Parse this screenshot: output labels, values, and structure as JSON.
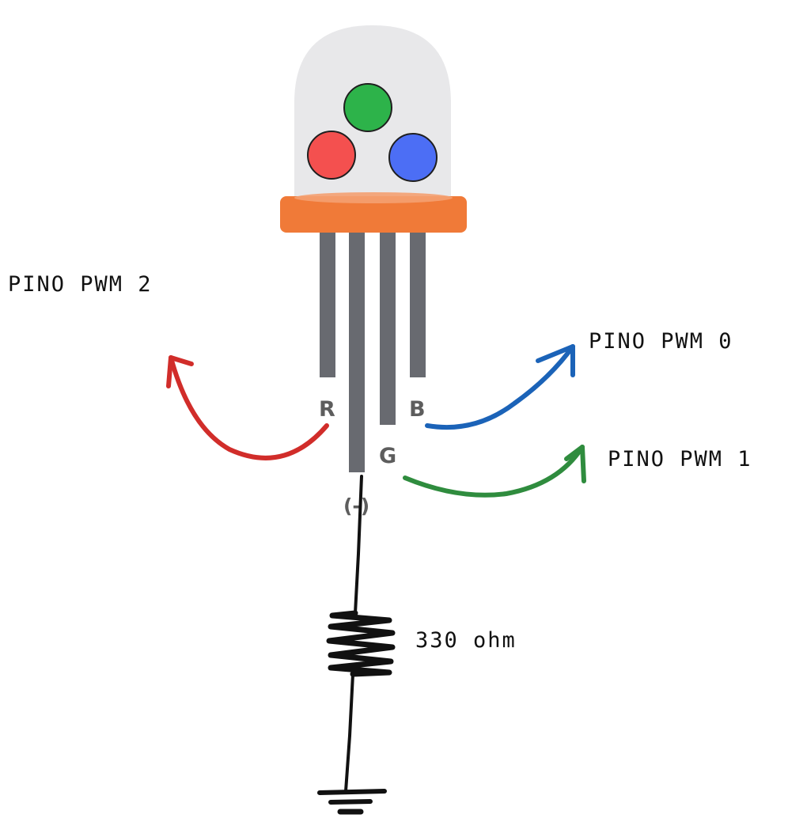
{
  "led": {
    "diode_colors": {
      "green": "#2db34a",
      "red": "#f4504f",
      "blue": "#4c6ef5"
    },
    "dome_color": "#e8e8ea",
    "base_color": "#f07a38",
    "lead_color": "#686a70"
  },
  "pin_labels": {
    "r": "R",
    "g": "G",
    "b": "B",
    "cathode": "(-)"
  },
  "connections": [
    {
      "pin": "R",
      "label": "PINO PWM 2",
      "color": "#d12d2a"
    },
    {
      "pin": "B",
      "label": "PINO PWM 0",
      "color": "#1b63b8"
    },
    {
      "pin": "G",
      "label": "PINO PWM 1",
      "color": "#2f8c3e"
    }
  ],
  "resistor": {
    "label": "330 ohm"
  },
  "ground": {
    "symbol": "ground-symbol"
  }
}
